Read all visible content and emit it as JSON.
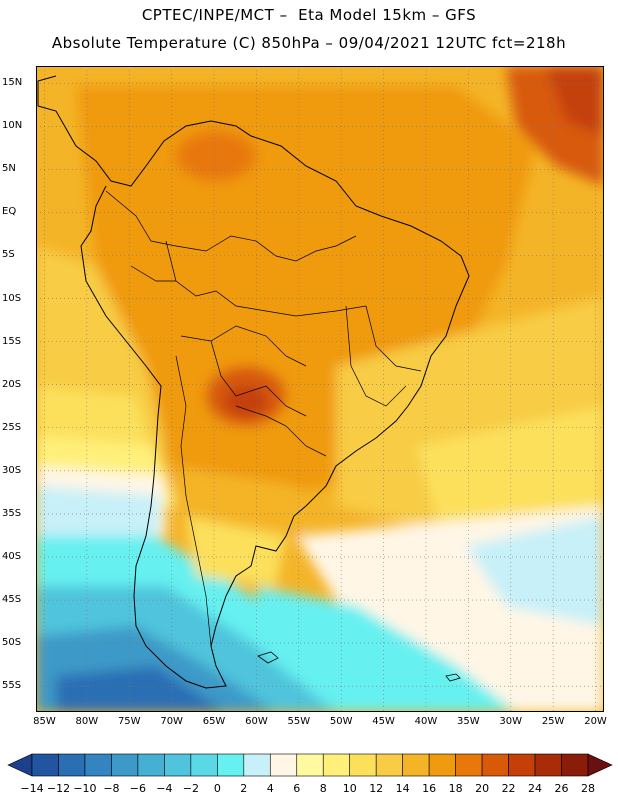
{
  "title_line1": "CPTEC/INPE/MCT –  Eta Model 15km – GFS",
  "title_line2": "Absolute Temperature (C) 850hPa – 09/04/2021 12UTC fct=218h",
  "map": {
    "lon_min": -86,
    "lon_max": -19,
    "lat_min": -58,
    "lat_max": 17,
    "lat_labels": [
      {
        "lat": 15,
        "text": "15N"
      },
      {
        "lat": 10,
        "text": "10N"
      },
      {
        "lat": 5,
        "text": "5N"
      },
      {
        "lat": 0,
        "text": "EQ"
      },
      {
        "lat": -5,
        "text": "5S"
      },
      {
        "lat": -10,
        "text": "10S"
      },
      {
        "lat": -15,
        "text": "15S"
      },
      {
        "lat": -20,
        "text": "20S"
      },
      {
        "lat": -25,
        "text": "25S"
      },
      {
        "lat": -30,
        "text": "30S"
      },
      {
        "lat": -35,
        "text": "35S"
      },
      {
        "lat": -40,
        "text": "40S"
      },
      {
        "lat": -45,
        "text": "45S"
      },
      {
        "lat": -50,
        "text": "50S"
      },
      {
        "lat": -55,
        "text": "55S"
      }
    ],
    "lon_labels": [
      {
        "lon": -85,
        "text": "85W"
      },
      {
        "lon": -80,
        "text": "80W"
      },
      {
        "lon": -75,
        "text": "75W"
      },
      {
        "lon": -70,
        "text": "70W"
      },
      {
        "lon": -65,
        "text": "65W"
      },
      {
        "lon": -60,
        "text": "60W"
      },
      {
        "lon": -55,
        "text": "55W"
      },
      {
        "lon": -50,
        "text": "50W"
      },
      {
        "lon": -45,
        "text": "45W"
      },
      {
        "lon": -40,
        "text": "40W"
      },
      {
        "lon": -35,
        "text": "35W"
      },
      {
        "lon": -30,
        "text": "30W"
      },
      {
        "lon": -25,
        "text": "25W"
      },
      {
        "lon": -20,
        "text": "20W"
      }
    ]
  },
  "colorbar": {
    "levels": [
      -14,
      -12,
      -10,
      -8,
      -6,
      -4,
      -2,
      0,
      2,
      4,
      6,
      8,
      10,
      12,
      14,
      16,
      18,
      20,
      22,
      24,
      26,
      28
    ],
    "labels": [
      "-14",
      "-12",
      "-10",
      "-8",
      "-6",
      "-4",
      "-2",
      "0",
      "2",
      "4",
      "6",
      "8",
      "10",
      "12",
      "14",
      "16",
      "18",
      "20",
      "22",
      "24",
      "26",
      "28"
    ],
    "colors": [
      "#1e3f8c",
      "#2155a0",
      "#2a6eb4",
      "#3384c0",
      "#3d9ac8",
      "#46b0d2",
      "#50c4dc",
      "#5ad8e6",
      "#66f0f0",
      "#c8f0f8",
      "#fff6e6",
      "#fffaa0",
      "#fff07a",
      "#fce05c",
      "#f8cc44",
      "#f4b428",
      "#f09a10",
      "#e8780a",
      "#d85a08",
      "#c44008",
      "#a82c08",
      "#8a1c0a",
      "#6a1010"
    ]
  }
}
